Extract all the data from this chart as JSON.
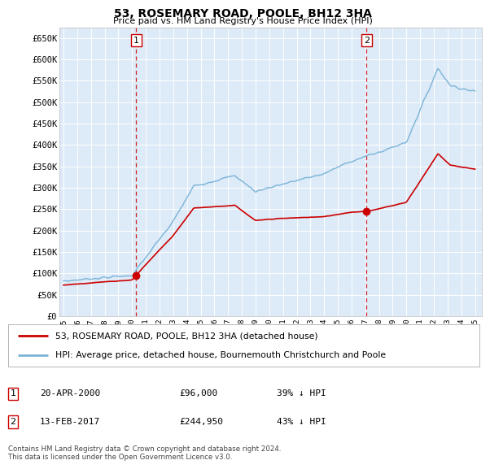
{
  "title": "53, ROSEMARY ROAD, POOLE, BH12 3HA",
  "subtitle": "Price paid vs. HM Land Registry's House Price Index (HPI)",
  "bg_color": "#ddeaf7",
  "hpi_color": "#7ab4d8",
  "price_color": "#cc0000",
  "vline_color": "#cc0000",
  "sale1_year": 2000.3,
  "sale2_year": 2017.1,
  "sale1_price": 96000,
  "sale2_price": 244950,
  "ylim_max": 675000,
  "ylim_min": 0,
  "yticks": [
    0,
    50000,
    100000,
    150000,
    200000,
    250000,
    300000,
    350000,
    400000,
    450000,
    500000,
    550000,
    600000,
    650000
  ],
  "ytick_labels": [
    "£0",
    "£50K",
    "£100K",
    "£150K",
    "£200K",
    "£250K",
    "£300K",
    "£350K",
    "£400K",
    "£450K",
    "£500K",
    "£550K",
    "£600K",
    "£650K"
  ],
  "legend_line1": "53, ROSEMARY ROAD, POOLE, BH12 3HA (detached house)",
  "legend_line2": "HPI: Average price, detached house, Bournemouth Christchurch and Poole",
  "annotation1_label": "1",
  "annotation1_date": "20-APR-2000",
  "annotation1_price": "£96,000",
  "annotation1_hpi": "39% ↓ HPI",
  "annotation2_label": "2",
  "annotation2_date": "13-FEB-2017",
  "annotation2_price": "£244,950",
  "annotation2_hpi": "43% ↓ HPI",
  "footer": "Contains HM Land Registry data © Crown copyright and database right 2024.\nThis data is licensed under the Open Government Licence v3.0."
}
